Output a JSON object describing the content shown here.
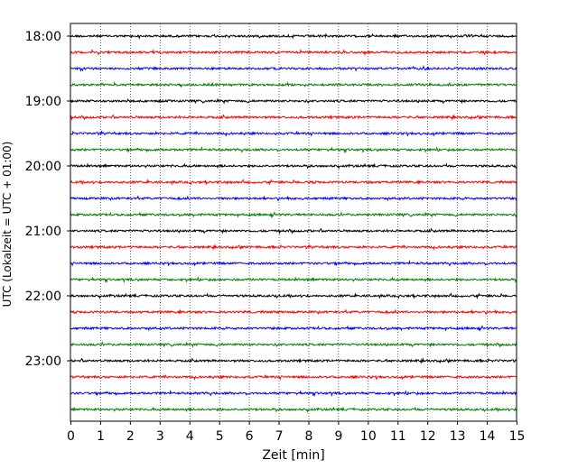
{
  "chart_data": {
    "type": "line",
    "subtype": "helicorder",
    "title": "",
    "xlabel": "Zeit  [min]",
    "ylabel": "UTC (Lokalzeit = UTC + 01:00)",
    "xlim": [
      0,
      15
    ],
    "x_ticks": [
      "0",
      "1",
      "2",
      "3",
      "4",
      "5",
      "6",
      "7",
      "8",
      "9",
      "10",
      "11",
      "12",
      "13",
      "14",
      "15"
    ],
    "x_grid": "dotted vertical lines at each minute",
    "y_ticks": [
      "18:00",
      "19:00",
      "20:00",
      "21:00",
      "22:00",
      "23:00"
    ],
    "trace_minutes": 15,
    "trace_start": "18:00",
    "trace_count": 24,
    "trace_colors": [
      "#000000",
      "#ff0000",
      "#0000ff",
      "#008000"
    ],
    "traces": [
      {
        "start": "18:00",
        "color": "#000000"
      },
      {
        "start": "18:15",
        "color": "#ff0000"
      },
      {
        "start": "18:30",
        "color": "#0000ff"
      },
      {
        "start": "18:45",
        "color": "#008000"
      },
      {
        "start": "19:00",
        "color": "#000000"
      },
      {
        "start": "19:15",
        "color": "#ff0000"
      },
      {
        "start": "19:30",
        "color": "#0000ff"
      },
      {
        "start": "19:45",
        "color": "#008000"
      },
      {
        "start": "20:00",
        "color": "#000000"
      },
      {
        "start": "20:15",
        "color": "#ff0000"
      },
      {
        "start": "20:30",
        "color": "#0000ff"
      },
      {
        "start": "20:45",
        "color": "#008000"
      },
      {
        "start": "21:00",
        "color": "#000000"
      },
      {
        "start": "21:15",
        "color": "#ff0000"
      },
      {
        "start": "21:30",
        "color": "#0000ff"
      },
      {
        "start": "21:45",
        "color": "#008000"
      },
      {
        "start": "22:00",
        "color": "#000000"
      },
      {
        "start": "22:15",
        "color": "#ff0000"
      },
      {
        "start": "22:30",
        "color": "#0000ff"
      },
      {
        "start": "22:45",
        "color": "#008000"
      },
      {
        "start": "23:00",
        "color": "#000000"
      },
      {
        "start": "23:15",
        "color": "#ff0000"
      },
      {
        "start": "23:30",
        "color": "#0000ff"
      },
      {
        "start": "23:45",
        "color": "#008000"
      }
    ]
  }
}
